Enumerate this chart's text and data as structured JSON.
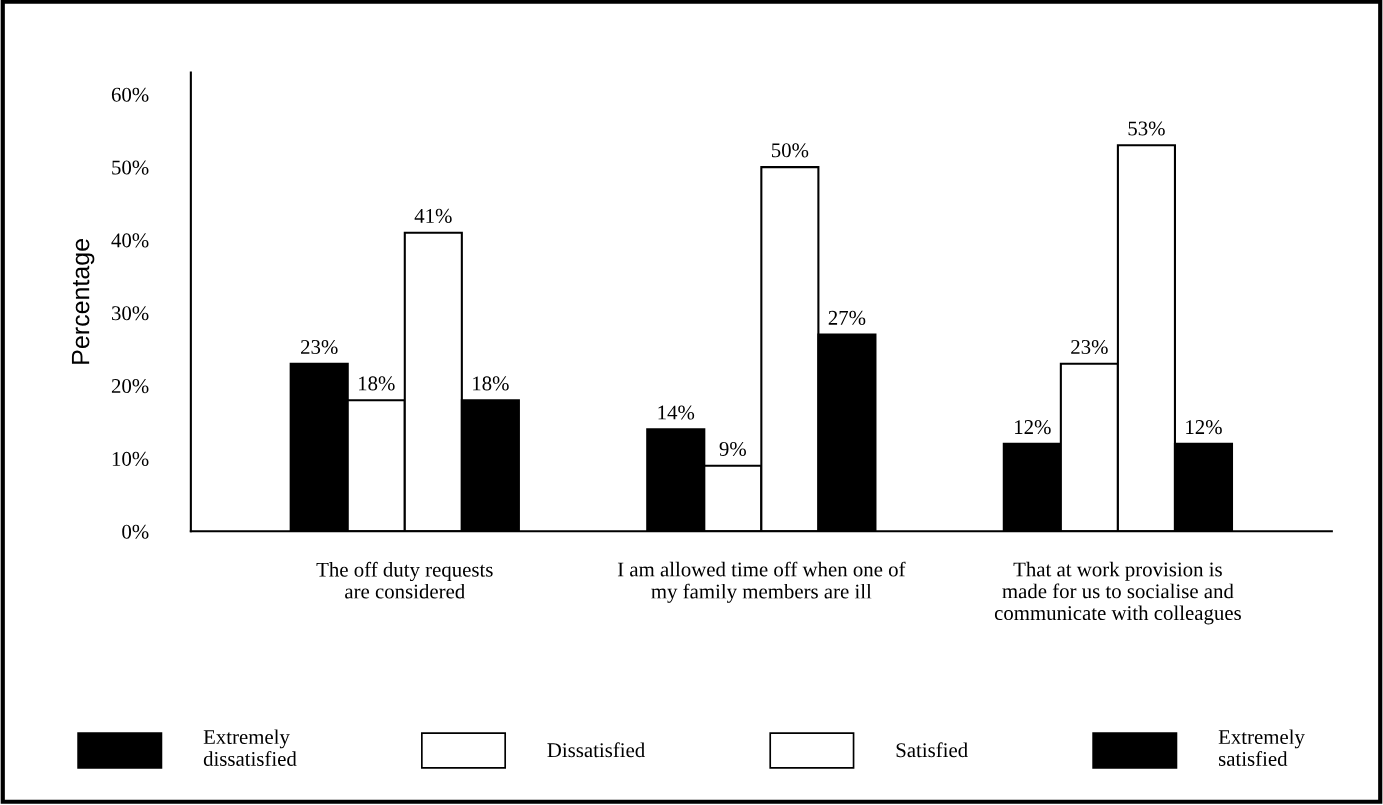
{
  "chart_data": {
    "type": "bar",
    "ylabel": "Percentage",
    "categories": [
      "The off duty requests\nare considered",
      "I am allowed time off when one of\nmy family members are ill",
      "That at work provision is\nmade for us to socialise and\ncommunicate with colleagues"
    ],
    "series": [
      {
        "name": "Extremely\ndissatisfied",
        "color": "#000000",
        "values": [
          23,
          14,
          12
        ],
        "value_labels": [
          "23%",
          "14%",
          "12%"
        ]
      },
      {
        "name": "Dissatisfied",
        "color": "#ffffff",
        "values": [
          18,
          9,
          23
        ],
        "value_labels": [
          "18%",
          "9%",
          "23%"
        ]
      },
      {
        "name": "Satisfied",
        "color": "#ffffff",
        "values": [
          41,
          50,
          53
        ],
        "value_labels": [
          "41%",
          "50%",
          "53%"
        ]
      },
      {
        "name": "Extremely\nsatisfied",
        "color": "#000000",
        "values": [
          18,
          27,
          12
        ],
        "value_labels": [
          "18%",
          "27%",
          "12%"
        ]
      }
    ],
    "ylim": [
      0,
      63
    ],
    "yticks": [
      {
        "value": 0,
        "label": "0%"
      },
      {
        "value": 10,
        "label": "10%"
      },
      {
        "value": 20,
        "label": "20%"
      },
      {
        "value": 30,
        "label": "30%"
      },
      {
        "value": 40,
        "label": "40%"
      },
      {
        "value": 50,
        "label": "50%"
      },
      {
        "value": 60,
        "label": "60%"
      }
    ],
    "grid": false,
    "legend": "bottom"
  }
}
